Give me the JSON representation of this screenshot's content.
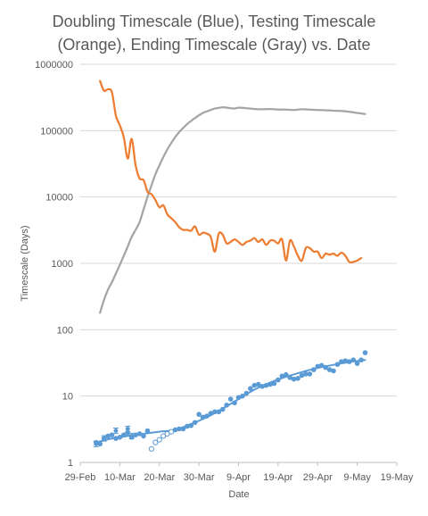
{
  "chart_data": {
    "type": "line",
    "title_line1": "Doubling Timescale (Blue), Testing Timescale",
    "title_line2": "(Orange), Ending Timescale (Gray) vs. Date",
    "xlabel": "Date",
    "ylabel": "Timescale (Days)",
    "x_ticks": [
      "29-Feb",
      "10-Mar",
      "20-Mar",
      "30-Mar",
      "9-Apr",
      "19-Apr",
      "29-Apr",
      "9-May",
      "19-May"
    ],
    "y_ticks": [
      "1",
      "10",
      "100",
      "1000",
      "10000",
      "100000",
      "1000000"
    ],
    "y_scale": "log",
    "ylim": [
      1,
      1000000
    ],
    "xlim": [
      "2020-02-29",
      "2020-05-19"
    ],
    "colors": {
      "blue": "#5b9bd5",
      "orange": "#ed7d31",
      "gray": "#a5a5a5",
      "text": "#595959",
      "grid": "#d9d9d9"
    },
    "series": [
      {
        "key": "testing",
        "color": "#ed7d31",
        "x": [
          "2020-03-05",
          "2020-03-06",
          "2020-03-07",
          "2020-03-08",
          "2020-03-09",
          "2020-03-10",
          "2020-03-11",
          "2020-03-12",
          "2020-03-13",
          "2020-03-14",
          "2020-03-15",
          "2020-03-16",
          "2020-03-17",
          "2020-03-18",
          "2020-03-19",
          "2020-03-20",
          "2020-03-21",
          "2020-03-22",
          "2020-03-23",
          "2020-03-24",
          "2020-03-25",
          "2020-03-26",
          "2020-03-27",
          "2020-03-28",
          "2020-03-29",
          "2020-03-30",
          "2020-03-31",
          "2020-04-01",
          "2020-04-02",
          "2020-04-03",
          "2020-04-04",
          "2020-04-05",
          "2020-04-06",
          "2020-04-07",
          "2020-04-08",
          "2020-04-09",
          "2020-04-10",
          "2020-04-11",
          "2020-04-12",
          "2020-04-13",
          "2020-04-14",
          "2020-04-15",
          "2020-04-16",
          "2020-04-17",
          "2020-04-18",
          "2020-04-19",
          "2020-04-20",
          "2020-04-21",
          "2020-04-22",
          "2020-04-23",
          "2020-04-24",
          "2020-04-25",
          "2020-04-26",
          "2020-04-27",
          "2020-04-28",
          "2020-04-29",
          "2020-04-30",
          "2020-05-01",
          "2020-05-02",
          "2020-05-03",
          "2020-05-04",
          "2020-05-05",
          "2020-05-06",
          "2020-05-07",
          "2020-05-08",
          "2020-05-09",
          "2020-05-10",
          "2020-05-11",
          "2020-05-12"
        ],
        "y": [
          560000,
          400000,
          420000,
          380000,
          170000,
          120000,
          80000,
          38000,
          75000,
          30000,
          19000,
          18000,
          12000,
          11000,
          9000,
          7000,
          7500,
          5500,
          4800,
          4200,
          3500,
          3200,
          3200,
          3100,
          3600,
          2700,
          2900,
          2800,
          2500,
          1500,
          2800,
          2700,
          2000,
          2100,
          2300,
          2100,
          1900,
          2100,
          2200,
          2400,
          2100,
          2300,
          1900,
          2200,
          2200,
          2000,
          2300,
          1100,
          2200,
          1800,
          1300,
          1100,
          1700,
          1700,
          1500,
          1500,
          1200,
          1400,
          1350,
          1400,
          1300,
          1450,
          1300,
          1050,
          1050,
          1100,
          1200,
          null,
          null
        ]
      },
      {
        "key": "ending",
        "color": "#a5a5a5",
        "x": [
          "2020-03-05",
          "2020-03-06",
          "2020-03-07",
          "2020-03-08",
          "2020-03-09",
          "2020-03-10",
          "2020-03-11",
          "2020-03-12",
          "2020-03-13",
          "2020-03-14",
          "2020-03-15",
          "2020-03-16",
          "2020-03-17",
          "2020-03-18",
          "2020-03-19",
          "2020-03-20",
          "2020-03-21",
          "2020-03-22",
          "2020-03-23",
          "2020-03-24",
          "2020-03-25",
          "2020-03-26",
          "2020-03-27",
          "2020-03-28",
          "2020-03-29",
          "2020-03-30",
          "2020-03-31",
          "2020-04-01",
          "2020-04-02",
          "2020-04-03",
          "2020-04-04",
          "2020-04-05",
          "2020-04-06",
          "2020-04-07",
          "2020-04-08",
          "2020-04-09",
          "2020-04-11",
          "2020-04-13",
          "2020-04-15",
          "2020-04-17",
          "2020-04-19",
          "2020-04-21",
          "2020-04-23",
          "2020-04-25",
          "2020-04-27",
          "2020-04-29",
          "2020-05-01",
          "2020-05-03",
          "2020-05-05",
          "2020-05-07",
          "2020-05-09",
          "2020-05-11"
        ],
        "y": [
          180,
          280,
          400,
          520,
          700,
          950,
          1300,
          1800,
          2500,
          3200,
          4200,
          6500,
          10000,
          15000,
          22000,
          30000,
          40000,
          52000,
          65000,
          80000,
          95000,
          110000,
          125000,
          140000,
          155000,
          170000,
          185000,
          195000,
          205000,
          215000,
          220000,
          225000,
          222000,
          218000,
          215000,
          222000,
          218000,
          212000,
          210000,
          212000,
          208000,
          208000,
          205000,
          210000,
          207000,
          205000,
          203000,
          200000,
          198000,
          192000,
          185000,
          178000
        ]
      },
      {
        "key": "doubling_fit",
        "color": "#5b9bd5",
        "x": [
          "2020-03-04",
          "2020-03-08",
          "2020-03-12",
          "2020-03-16",
          "2020-03-20",
          "2020-03-24",
          "2020-03-28",
          "2020-04-01",
          "2020-04-05",
          "2020-04-09",
          "2020-04-13",
          "2020-04-17",
          "2020-04-21",
          "2020-04-25",
          "2020-04-29",
          "2020-05-03",
          "2020-05-07",
          "2020-05-11"
        ],
        "y": [
          2.0,
          2.3,
          2.5,
          2.7,
          2.9,
          3.1,
          3.8,
          4.8,
          6.5,
          9.0,
          12.5,
          16.0,
          19.5,
          23.0,
          26.5,
          29.5,
          32.5,
          35.0
        ]
      },
      {
        "key": "doubling_points",
        "color": "#5b9bd5",
        "x": [
          "2020-03-04",
          "2020-03-05",
          "2020-03-06",
          "2020-03-07",
          "2020-03-08",
          "2020-03-09",
          "2020-03-10",
          "2020-03-11",
          "2020-03-12",
          "2020-03-13",
          "2020-03-14",
          "2020-03-15",
          "2020-03-16",
          "2020-03-17",
          "2020-03-24",
          "2020-03-25",
          "2020-03-26",
          "2020-03-27",
          "2020-03-28",
          "2020-03-29",
          "2020-03-30",
          "2020-03-31",
          "2020-04-01",
          "2020-04-02",
          "2020-04-03",
          "2020-04-04",
          "2020-04-05",
          "2020-04-06",
          "2020-04-07",
          "2020-04-08",
          "2020-04-09",
          "2020-04-10",
          "2020-04-11",
          "2020-04-12",
          "2020-04-13",
          "2020-04-14",
          "2020-04-15",
          "2020-04-16",
          "2020-04-17",
          "2020-04-18",
          "2020-04-19",
          "2020-04-20",
          "2020-04-21",
          "2020-04-22",
          "2020-04-23",
          "2020-04-24",
          "2020-04-25",
          "2020-04-26",
          "2020-04-27",
          "2020-04-28",
          "2020-04-29",
          "2020-04-30",
          "2020-05-01",
          "2020-05-02",
          "2020-05-03",
          "2020-05-04",
          "2020-05-05",
          "2020-05-06",
          "2020-05-07",
          "2020-05-08",
          "2020-05-09",
          "2020-05-10",
          "2020-05-11"
        ],
        "y": [
          2.0,
          1.9,
          2.3,
          2.5,
          2.6,
          2.3,
          2.4,
          2.6,
          2.8,
          2.4,
          2.6,
          2.7,
          2.5,
          3.0,
          3.1,
          3.2,
          3.2,
          3.5,
          3.6,
          4.0,
          5.3,
          4.8,
          5.0,
          5.5,
          5.8,
          5.8,
          6.3,
          7.3,
          9.0,
          7.9,
          9.5,
          10.0,
          11.0,
          13.0,
          14.5,
          15.0,
          14.0,
          14.5,
          15.0,
          15.5,
          17.5,
          20.0,
          21.0,
          19.0,
          18.0,
          18.5,
          20.5,
          21.5,
          21.5,
          25.0,
          28.0,
          29.0,
          27.0,
          25.0,
          24.0,
          30.0,
          33.0,
          34.0,
          33.0,
          35.0,
          31.0,
          35.0,
          45.0
        ]
      },
      {
        "key": "doubling_hollow",
        "color": "#5b9bd5",
        "x": [
          "2020-03-18",
          "2020-03-19",
          "2020-03-20",
          "2020-03-21",
          "2020-03-22",
          "2020-03-23"
        ],
        "y": [
          1.6,
          2.0,
          2.2,
          2.5,
          2.7,
          2.9
        ]
      },
      {
        "key": "doubling_errorbars",
        "color": "#5b9bd5",
        "x": [
          "2020-03-04",
          "2020-03-06",
          "2020-03-09",
          "2020-03-12",
          "2020-03-13"
        ],
        "y": [
          1.9,
          2.3,
          3.0,
          3.2,
          2.5
        ]
      }
    ]
  }
}
